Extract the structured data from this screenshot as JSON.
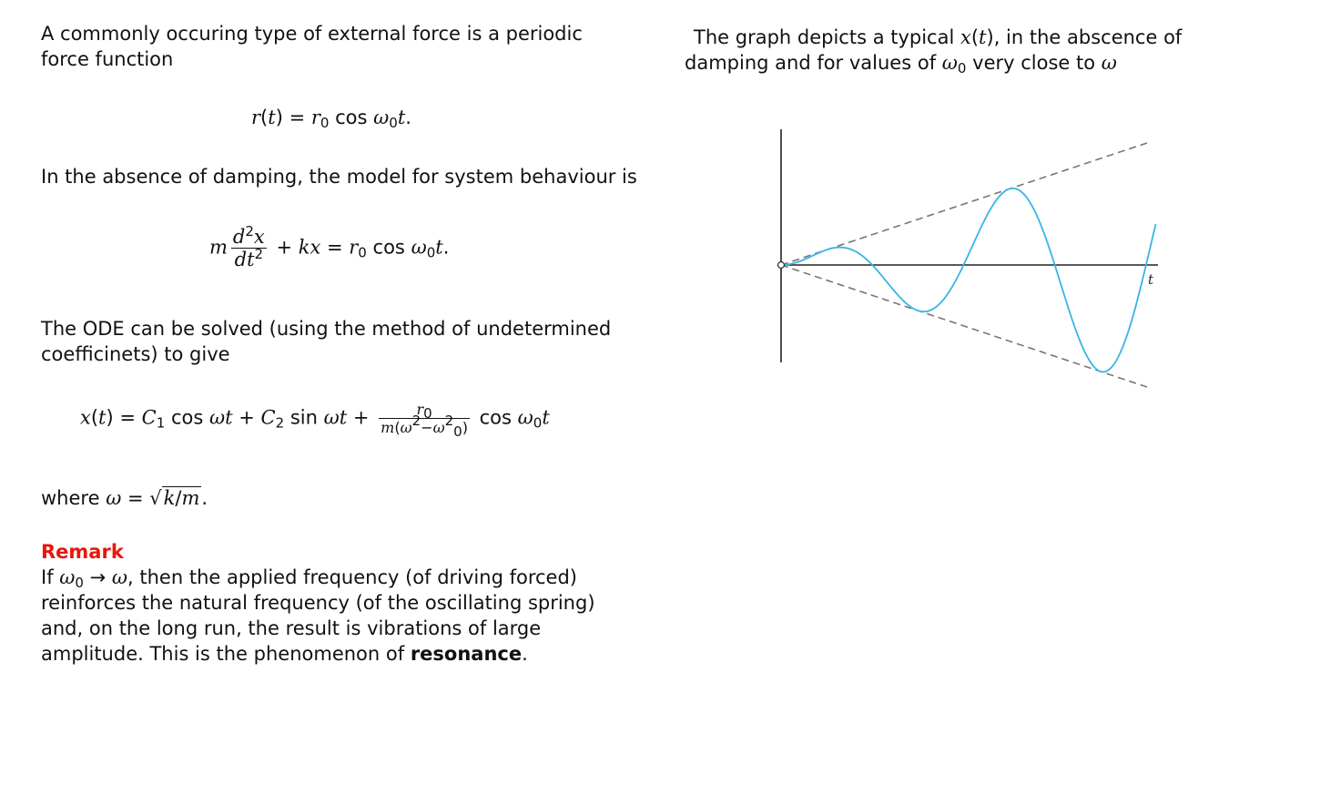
{
  "left": {
    "intro": "A commonly occuring type of external force is a periodic force function",
    "model_text": "In the absence of damping, the model for system behaviour is",
    "ode_text": "The ODE can be solved (using the method of undetermined coefficinets) to give",
    "where_prefix": "where",
    "remark_title": "Remark",
    "remark_body_1": "If",
    "remark_body_2": ", then the applied frequency (of driving forced) reinforces the natural frequency (of the oscillating spring) and, on the long run, the result is vibrations of large amplitude.  This is the phenomenon of",
    "remark_bold": "resonance",
    "remark_end": "."
  },
  "right": {
    "caption_1": "The graph depicts a typical",
    "caption_2": ", in the abscence of damping and for values of",
    "caption_3": "very close to",
    "axis_label": "t"
  },
  "chart_data": {
    "type": "line",
    "title": "",
    "xlabel": "t",
    "ylabel": "",
    "series": [
      {
        "style": "solid",
        "color": "#3ab4e6",
        "shape": "t*sin(t)",
        "t_range": [
          0,
          12.9
        ]
      },
      {
        "style": "dashed",
        "color": "#777777",
        "shape": "+envelope"
      },
      {
        "style": "dashed",
        "color": "#777777",
        "shape": "-envelope"
      }
    ],
    "colors": {
      "curve": "#3ab4e6",
      "envelope": "#777777",
      "axis": "#222222"
    }
  }
}
